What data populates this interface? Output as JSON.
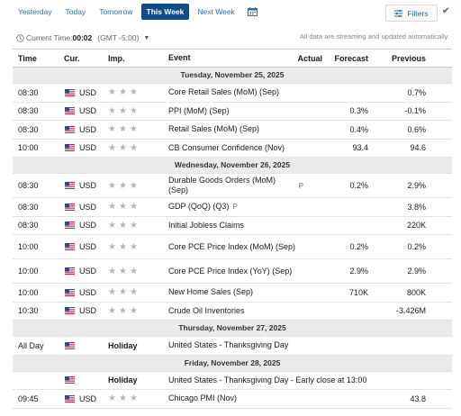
{
  "tabs": [
    {
      "label": "Yesterday",
      "active": false
    },
    {
      "label": "Today",
      "active": false
    },
    {
      "label": "Tomorrow",
      "active": false
    },
    {
      "label": "This Week",
      "active": true
    },
    {
      "label": "Next Week",
      "active": false
    }
  ],
  "filters_label": "Filters",
  "current_time": {
    "label": "Current Time:",
    "value": "00:02",
    "timezone": "(GMT -5:00)"
  },
  "streaming_note": "All data are streaming and updated automatically.",
  "columns": {
    "time": "Time",
    "cur": "Cur.",
    "imp": "Imp.",
    "event": "Event",
    "actual": "Actual",
    "forecast": "Forecast",
    "previous": "Previous"
  },
  "days": [
    {
      "label": "Tuesday, November 25, 2025",
      "rows": [
        {
          "time": "08:30",
          "currency": "USD",
          "event": "Core Retail Sales (MoM) (Sep)",
          "actual": "",
          "forecast": "",
          "previous": "0.7%"
        },
        {
          "time": "08:30",
          "currency": "USD",
          "event": "PPI (MoM) (Sep)",
          "actual": "",
          "forecast": "0.3%",
          "previous": "-0.1%"
        },
        {
          "time": "08:30",
          "currency": "USD",
          "event": "Retail Sales (MoM) (Sep)",
          "actual": "",
          "forecast": "0.4%",
          "previous": "0.6%"
        },
        {
          "time": "10:00",
          "currency": "USD",
          "event": "CB Consumer Confidence (Nov)",
          "actual": "",
          "forecast": "93.4",
          "previous": "94.6"
        }
      ]
    },
    {
      "label": "Wednesday, November 26, 2025",
      "rows": [
        {
          "time": "08:30",
          "currency": "USD",
          "event": "Durable Goods Orders (MoM) (Sep)",
          "prelim": "P",
          "actual": "",
          "forecast": "0.2%",
          "previous": "2.9%"
        },
        {
          "time": "08:30",
          "currency": "USD",
          "event": "GDP (QoQ) (Q3)",
          "prelim": "P",
          "actual": "",
          "forecast": "",
          "previous": "3.8%"
        },
        {
          "time": "08:30",
          "currency": "USD",
          "event": "Initial Jobless Claims",
          "actual": "",
          "forecast": "",
          "previous": "220K"
        },
        {
          "time": "10:00",
          "currency": "USD",
          "event": "Core PCE Price Index (MoM) (Sep)",
          "actual": "",
          "forecast": "0.2%",
          "previous": "0.2%"
        },
        {
          "time": "10:00",
          "currency": "USD",
          "event": "Core PCE Price Index (YoY) (Sep)",
          "actual": "",
          "forecast": "2.9%",
          "previous": "2.9%"
        },
        {
          "time": "10:00",
          "currency": "USD",
          "event": "New Home Sales (Sep)",
          "actual": "",
          "forecast": "710K",
          "previous": "800K"
        },
        {
          "time": "10:30",
          "currency": "USD",
          "event": "Crude Oil Inventories",
          "actual": "",
          "forecast": "",
          "previous": "-3.426M"
        }
      ]
    },
    {
      "label": "Thursday, November 27, 2025",
      "rows": [
        {
          "time": "All Day",
          "holiday": "Holiday",
          "event": "United States - Thanksgiving Day"
        }
      ]
    },
    {
      "label": "Friday, November 28, 2025",
      "rows": [
        {
          "time": "",
          "holiday": "Holiday",
          "event": "United States - Thanksgiving Day - Early close at 13:00"
        },
        {
          "time": "09:45",
          "currency": "USD",
          "event": "Chicago PMI (Nov)",
          "actual": "",
          "forecast": "",
          "previous": "43.8"
        }
      ]
    }
  ],
  "colors": {
    "accent": "#0f4d8a",
    "link": "#1e6fba",
    "day_bg": "#ebebeb",
    "check": "#2e9e3f"
  },
  "icons": {
    "calendar": "calendar-icon",
    "filter": "filter-icon",
    "clock": "clock-icon",
    "star": "star-icon",
    "flag": "us-flag-icon"
  }
}
